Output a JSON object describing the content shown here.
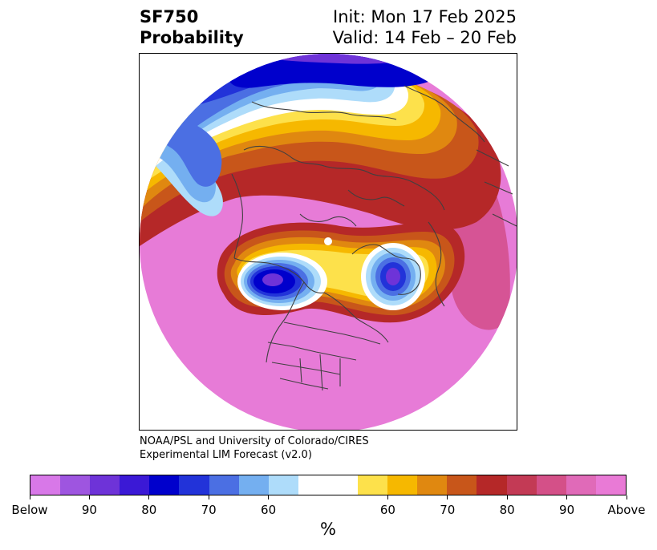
{
  "title": {
    "left_line1": "SF750",
    "left_line2": "Probability",
    "right_line1": "Init: Mon 17 Feb 2025",
    "right_line2": "Valid: 14 Feb – 20 Feb"
  },
  "credit": {
    "line1": "NOAA/PSL and University of Colorado/CIRES",
    "line2": "Experimental LIM Forecast (v2.0)"
  },
  "colorbar": {
    "colors": [
      "#d878e8",
      "#9e55e0",
      "#6e33d8",
      "#3b19d6",
      "#0000cc",
      "#2233d9",
      "#4b6fe3",
      "#74aff0",
      "#aedcfa",
      "#ffffff",
      "#ffffff",
      "#fde14b",
      "#f6b800",
      "#e08810",
      "#c8561a",
      "#b52828",
      "#c33a55",
      "#d45088",
      "#e06ab8",
      "#e97ad6"
    ],
    "tick_labels": [
      "Below",
      "90",
      "80",
      "70",
      "60",
      "60",
      "70",
      "80",
      "90",
      "Above"
    ],
    "unit": "%"
  },
  "map": {
    "projection": "north-polar-stereographic",
    "colors": {
      "above_outer": "#e77bd7",
      "above_mid": "#d65495",
      "above_high": "#b52828",
      "warm1": "#c8561a",
      "warm2": "#e08810",
      "warm3": "#f6b800",
      "warm4": "#fde14b",
      "neutral": "#ffffff",
      "cool1": "#aedcfa",
      "cool2": "#74aff0",
      "cool3": "#4b6fe3",
      "cool4": "#2233d9",
      "cool5": "#0000cc",
      "cool6": "#6e33d8",
      "below": "#9e55e0",
      "coast": "#404040"
    }
  }
}
